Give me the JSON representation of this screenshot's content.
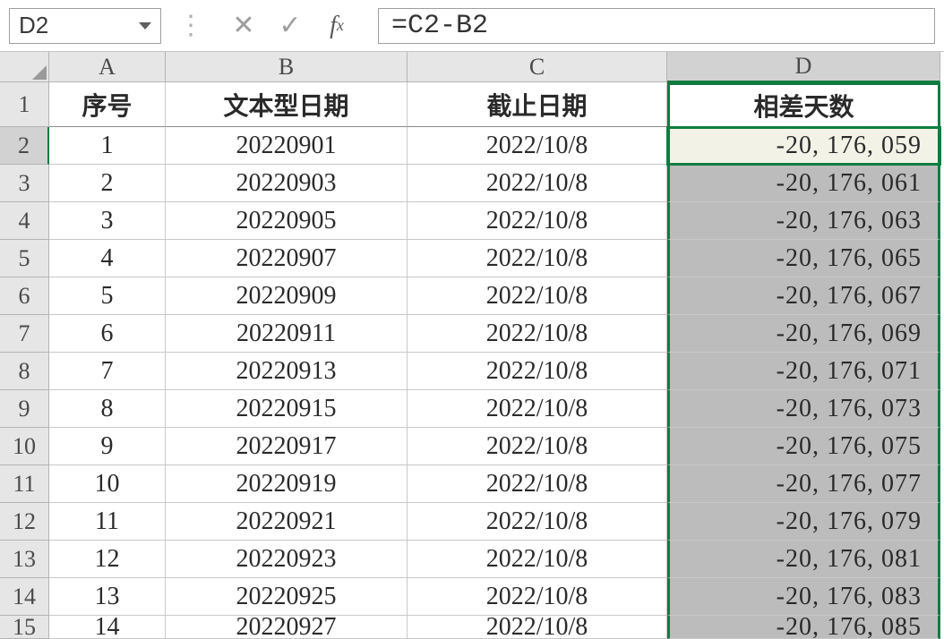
{
  "nameBox": "D2",
  "formula": "=C2-B2",
  "columns": [
    "A",
    "B",
    "C",
    "D"
  ],
  "selectedColumn": "D",
  "rowNumbers": [
    "1",
    "2",
    "3",
    "4",
    "5",
    "6",
    "7",
    "8",
    "9",
    "10",
    "11",
    "12",
    "13",
    "14",
    "15"
  ],
  "activeRow": "2",
  "headers": {
    "A": "序号",
    "B": "文本型日期",
    "C": "截止日期",
    "D": "相差天数"
  },
  "data": [
    {
      "A": "1",
      "B": "20220901",
      "C": "2022/10/8",
      "D": "-20, 176, 059"
    },
    {
      "A": "2",
      "B": "20220903",
      "C": "2022/10/8",
      "D": "-20, 176, 061"
    },
    {
      "A": "3",
      "B": "20220905",
      "C": "2022/10/8",
      "D": "-20, 176, 063"
    },
    {
      "A": "4",
      "B": "20220907",
      "C": "2022/10/8",
      "D": "-20, 176, 065"
    },
    {
      "A": "5",
      "B": "20220909",
      "C": "2022/10/8",
      "D": "-20, 176, 067"
    },
    {
      "A": "6",
      "B": "20220911",
      "C": "2022/10/8",
      "D": "-20, 176, 069"
    },
    {
      "A": "7",
      "B": "20220913",
      "C": "2022/10/8",
      "D": "-20, 176, 071"
    },
    {
      "A": "8",
      "B": "20220915",
      "C": "2022/10/8",
      "D": "-20, 176, 073"
    },
    {
      "A": "9",
      "B": "20220917",
      "C": "2022/10/8",
      "D": "-20, 176, 075"
    },
    {
      "A": "10",
      "B": "20220919",
      "C": "2022/10/8",
      "D": "-20, 176, 077"
    },
    {
      "A": "11",
      "B": "20220921",
      "C": "2022/10/8",
      "D": "-20, 176, 079"
    },
    {
      "A": "12",
      "B": "20220923",
      "C": "2022/10/8",
      "D": "-20, 176, 081"
    },
    {
      "A": "13",
      "B": "20220925",
      "C": "2022/10/8",
      "D": "-20, 176, 083"
    },
    {
      "A": "14",
      "B": "20220927",
      "C": "2022/10/8",
      "D": "-20, 176, 085"
    }
  ],
  "colors": {
    "selection_border": "#107c41",
    "header_bg": "#e6e6e6",
    "sel_col_bg": "#bcbcbc",
    "active_bg": "#f2f2e6"
  }
}
